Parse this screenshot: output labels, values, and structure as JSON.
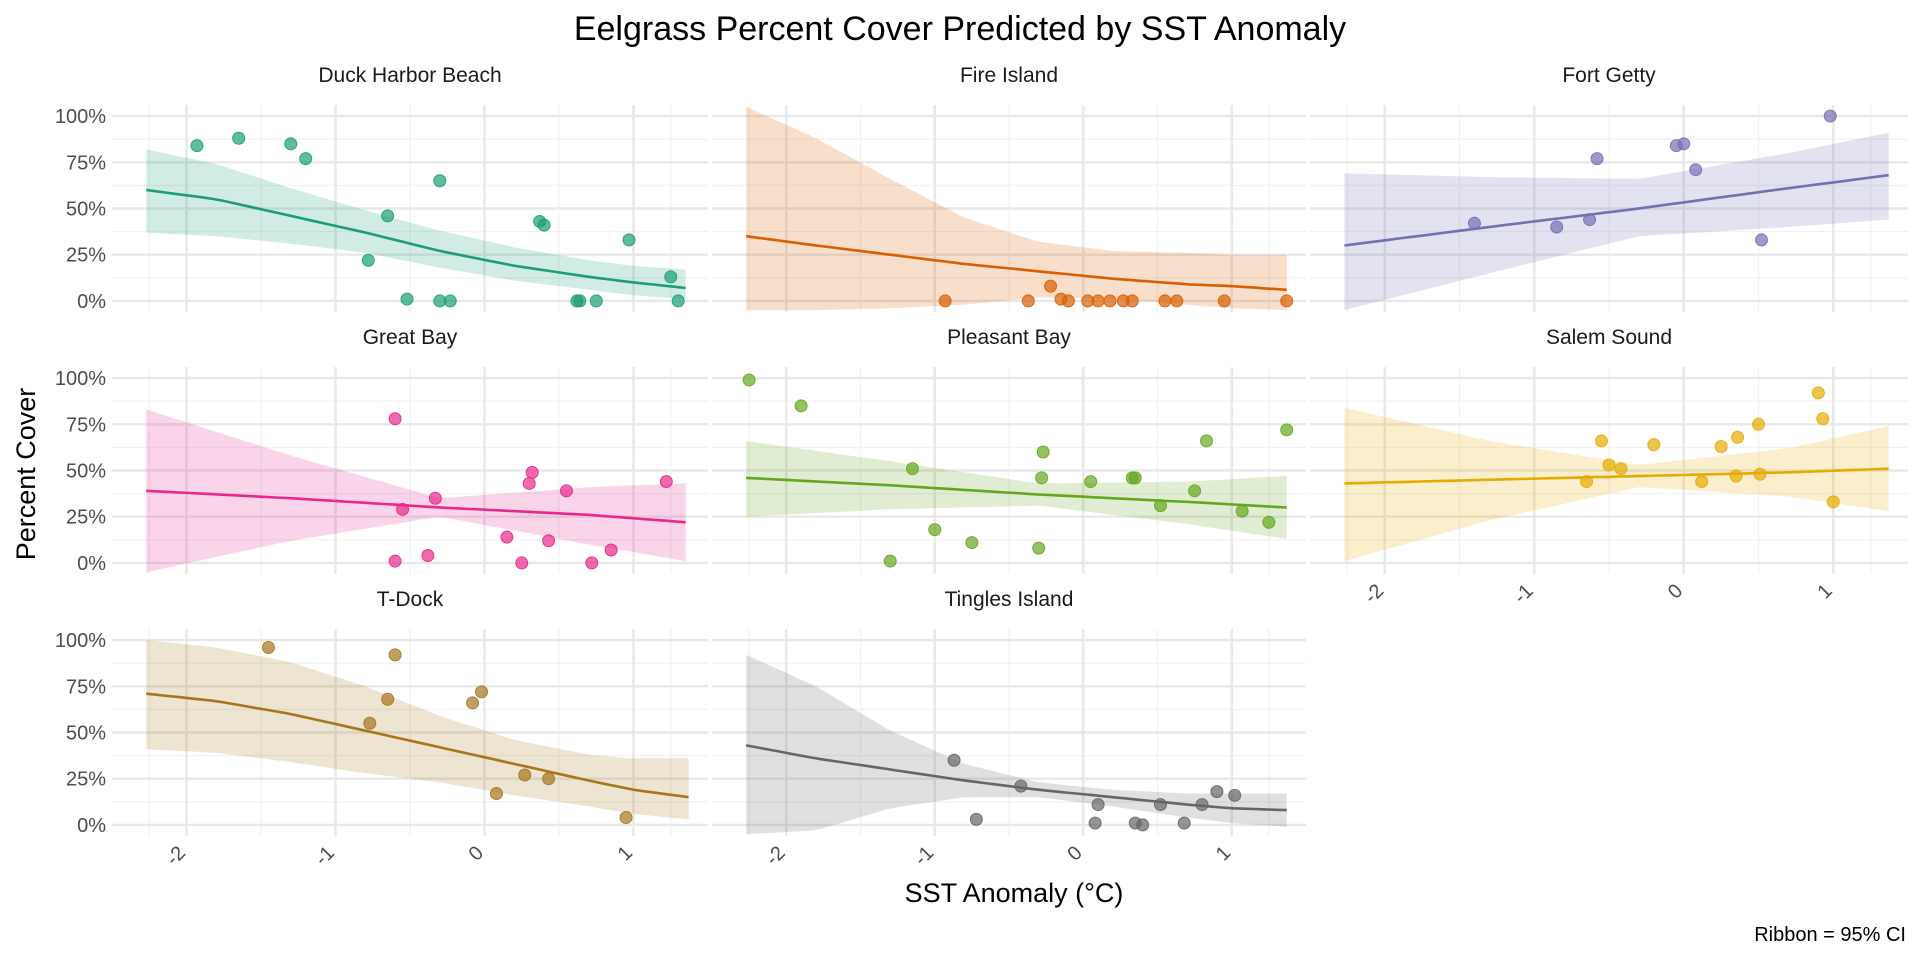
{
  "chart_data": {
    "type": "scatter",
    "title": "Eelgrass Percent Cover Predicted by SST Anomaly",
    "xlabel": "SST Anomaly (°C)",
    "ylabel": "Percent Cover",
    "caption": "Ribbon = 95% CI",
    "xlim": [
      -2.5,
      1.5
    ],
    "ylim": [
      -0.06,
      1.06
    ],
    "x_ticks": [
      -2,
      -1,
      0,
      1
    ],
    "x_tick_labels": [
      "-2",
      "-1",
      "0",
      "1"
    ],
    "y_ticks": [
      0,
      0.25,
      0.5,
      0.75,
      1
    ],
    "y_tick_labels": [
      "0%",
      "25%",
      "50%",
      "75%",
      "100%"
    ],
    "grid": true,
    "facets": [
      {
        "name": "Duck Harbor Beach",
        "color": "#1b9e77",
        "x_range": [
          -2.27,
          1.35
        ],
        "fit": {
          "x": [
            -2.27,
            -1.8,
            -1.3,
            -0.8,
            -0.3,
            0.2,
            0.7,
            1.0,
            1.35
          ],
          "y": [
            0.6,
            0.55,
            0.46,
            0.37,
            0.27,
            0.19,
            0.13,
            0.1,
            0.07
          ]
        },
        "ci_upper": [
          0.82,
          0.74,
          0.61,
          0.49,
          0.38,
          0.29,
          0.22,
          0.19,
          0.17
        ],
        "ci_lower": [
          0.37,
          0.35,
          0.31,
          0.26,
          0.18,
          0.11,
          0.06,
          0.03,
          0.01
        ],
        "points": [
          {
            "x": -1.93,
            "y": 0.84
          },
          {
            "x": -1.65,
            "y": 0.88
          },
          {
            "x": -1.3,
            "y": 0.85
          },
          {
            "x": -1.2,
            "y": 0.77
          },
          {
            "x": -0.78,
            "y": 0.22
          },
          {
            "x": -0.65,
            "y": 0.46
          },
          {
            "x": -0.52,
            "y": 0.01
          },
          {
            "x": -0.3,
            "y": 0.65
          },
          {
            "x": -0.3,
            "y": 0.0
          },
          {
            "x": -0.23,
            "y": 0.0
          },
          {
            "x": 0.37,
            "y": 0.43
          },
          {
            "x": 0.4,
            "y": 0.41
          },
          {
            "x": 0.62,
            "y": 0.0
          },
          {
            "x": 0.64,
            "y": 0.0
          },
          {
            "x": 0.75,
            "y": 0.0
          },
          {
            "x": 0.97,
            "y": 0.33
          },
          {
            "x": 1.25,
            "y": 0.13
          },
          {
            "x": 1.3,
            "y": 0.0
          }
        ]
      },
      {
        "name": "Fire Island",
        "color": "#d95f02",
        "x_range": [
          -2.27,
          1.37
        ],
        "fit": {
          "x": [
            -2.27,
            -1.8,
            -1.3,
            -0.8,
            -0.3,
            0.2,
            0.7,
            1.0,
            1.37
          ],
          "y": [
            0.35,
            0.3,
            0.25,
            0.2,
            0.16,
            0.12,
            0.09,
            0.08,
            0.06
          ]
        },
        "ci_upper": [
          1.05,
          0.88,
          0.66,
          0.45,
          0.32,
          0.27,
          0.26,
          0.25,
          0.25
        ],
        "ci_lower": [
          -0.05,
          -0.05,
          -0.04,
          -0.02,
          0.02,
          0.01,
          -0.02,
          -0.04,
          -0.05
        ],
        "points": [
          {
            "x": -0.93,
            "y": 0.0
          },
          {
            "x": -0.37,
            "y": 0.0
          },
          {
            "x": -0.22,
            "y": 0.08
          },
          {
            "x": -0.15,
            "y": 0.01
          },
          {
            "x": -0.1,
            "y": 0.0
          },
          {
            "x": 0.03,
            "y": 0.0
          },
          {
            "x": 0.1,
            "y": 0.0
          },
          {
            "x": 0.18,
            "y": 0.0
          },
          {
            "x": 0.27,
            "y": 0.0
          },
          {
            "x": 0.33,
            "y": 0.0
          },
          {
            "x": 0.55,
            "y": 0.0
          },
          {
            "x": 0.63,
            "y": 0.0
          },
          {
            "x": 0.95,
            "y": 0.0
          },
          {
            "x": 1.37,
            "y": 0.0
          }
        ]
      },
      {
        "name": "Fort Getty",
        "color": "#7570b3",
        "x_range": [
          -2.27,
          1.37
        ],
        "fit": {
          "x": [
            -2.27,
            -1.3,
            -0.3,
            0.7,
            1.37
          ],
          "y": [
            0.3,
            0.4,
            0.5,
            0.61,
            0.68
          ]
        },
        "ci_upper": [
          0.69,
          0.67,
          0.66,
          0.8,
          0.91
        ],
        "ci_lower": [
          -0.05,
          0.15,
          0.35,
          0.4,
          0.44
        ],
        "points": [
          {
            "x": -1.4,
            "y": 0.42
          },
          {
            "x": -0.85,
            "y": 0.4
          },
          {
            "x": -0.63,
            "y": 0.44
          },
          {
            "x": -0.58,
            "y": 0.77
          },
          {
            "x": -0.05,
            "y": 0.84
          },
          {
            "x": 0.0,
            "y": 0.85
          },
          {
            "x": 0.08,
            "y": 0.71
          },
          {
            "x": 0.52,
            "y": 0.33
          },
          {
            "x": 0.98,
            "y": 1.0
          }
        ]
      },
      {
        "name": "Great Bay",
        "color": "#e7298a",
        "x_range": [
          -2.27,
          1.35
        ],
        "fit": {
          "x": [
            -2.27,
            -1.3,
            -0.3,
            0.7,
            1.35
          ],
          "y": [
            0.39,
            0.35,
            0.3,
            0.26,
            0.22
          ]
        },
        "ci_upper": [
          0.83,
          0.58,
          0.35,
          0.41,
          0.43
        ],
        "ci_lower": [
          -0.05,
          0.12,
          0.25,
          0.1,
          0.01
        ],
        "points": [
          {
            "x": -0.6,
            "y": 0.78
          },
          {
            "x": -0.6,
            "y": 0.01
          },
          {
            "x": -0.55,
            "y": 0.29
          },
          {
            "x": -0.38,
            "y": 0.04
          },
          {
            "x": -0.33,
            "y": 0.35
          },
          {
            "x": 0.15,
            "y": 0.14
          },
          {
            "x": 0.25,
            "y": 0.0
          },
          {
            "x": 0.3,
            "y": 0.43
          },
          {
            "x": 0.32,
            "y": 0.49
          },
          {
            "x": 0.43,
            "y": 0.12
          },
          {
            "x": 0.55,
            "y": 0.39
          },
          {
            "x": 0.72,
            "y": 0.0
          },
          {
            "x": 0.85,
            "y": 0.07
          },
          {
            "x": 1.22,
            "y": 0.44
          }
        ]
      },
      {
        "name": "Pleasant Bay",
        "color": "#66a61e",
        "x_range": [
          -2.27,
          1.37
        ],
        "fit": {
          "x": [
            -2.27,
            -1.3,
            -0.3,
            0.7,
            1.37
          ],
          "y": [
            0.46,
            0.42,
            0.37,
            0.33,
            0.3
          ]
        },
        "ci_upper": [
          0.66,
          0.55,
          0.43,
          0.44,
          0.47
        ],
        "ci_lower": [
          0.25,
          0.29,
          0.31,
          0.21,
          0.13
        ],
        "points": [
          {
            "x": -2.25,
            "y": 0.99
          },
          {
            "x": -1.9,
            "y": 0.85
          },
          {
            "x": -1.3,
            "y": 0.01
          },
          {
            "x": -1.15,
            "y": 0.51
          },
          {
            "x": -1.0,
            "y": 0.18
          },
          {
            "x": -0.75,
            "y": 0.11
          },
          {
            "x": -0.3,
            "y": 0.08
          },
          {
            "x": -0.28,
            "y": 0.46
          },
          {
            "x": -0.27,
            "y": 0.6
          },
          {
            "x": 0.05,
            "y": 0.44
          },
          {
            "x": 0.33,
            "y": 0.46
          },
          {
            "x": 0.35,
            "y": 0.46
          },
          {
            "x": 0.52,
            "y": 0.31
          },
          {
            "x": 0.75,
            "y": 0.39
          },
          {
            "x": 0.83,
            "y": 0.66
          },
          {
            "x": 1.07,
            "y": 0.28
          },
          {
            "x": 1.25,
            "y": 0.22
          },
          {
            "x": 1.37,
            "y": 0.72
          }
        ]
      },
      {
        "name": "Salem Sound",
        "color": "#e6ab02",
        "x_range": [
          -2.27,
          1.37
        ],
        "fit": {
          "x": [
            -2.27,
            -1.3,
            -0.3,
            0.7,
            1.37
          ],
          "y": [
            0.43,
            0.45,
            0.47,
            0.49,
            0.51
          ]
        },
        "ci_upper": [
          0.84,
          0.66,
          0.53,
          0.62,
          0.74
        ],
        "ci_lower": [
          0.01,
          0.23,
          0.41,
          0.36,
          0.28
        ],
        "points": [
          {
            "x": -0.65,
            "y": 0.44
          },
          {
            "x": -0.55,
            "y": 0.66
          },
          {
            "x": -0.5,
            "y": 0.53
          },
          {
            "x": -0.42,
            "y": 0.51
          },
          {
            "x": -0.2,
            "y": 0.64
          },
          {
            "x": 0.12,
            "y": 0.44
          },
          {
            "x": 0.25,
            "y": 0.63
          },
          {
            "x": 0.35,
            "y": 0.47
          },
          {
            "x": 0.36,
            "y": 0.68
          },
          {
            "x": 0.5,
            "y": 0.75
          },
          {
            "x": 0.51,
            "y": 0.48
          },
          {
            "x": 0.9,
            "y": 0.92
          },
          {
            "x": 0.93,
            "y": 0.78
          },
          {
            "x": 1.0,
            "y": 0.33
          }
        ]
      },
      {
        "name": "T-Dock",
        "color": "#a6761d",
        "x_range": [
          -2.27,
          1.37
        ],
        "fit": {
          "x": [
            -2.27,
            -1.8,
            -1.3,
            -0.8,
            -0.3,
            0.2,
            0.7,
            1.0,
            1.37
          ],
          "y": [
            0.71,
            0.67,
            0.6,
            0.51,
            0.42,
            0.33,
            0.24,
            0.19,
            0.15
          ]
        },
        "ci_upper": [
          1.0,
          0.96,
          0.88,
          0.75,
          0.59,
          0.46,
          0.38,
          0.36,
          0.36
        ],
        "ci_lower": [
          0.41,
          0.39,
          0.34,
          0.28,
          0.23,
          0.16,
          0.1,
          0.06,
          0.03
        ],
        "points": [
          {
            "x": -1.45,
            "y": 0.96
          },
          {
            "x": -0.77,
            "y": 0.55
          },
          {
            "x": -0.65,
            "y": 0.68
          },
          {
            "x": -0.6,
            "y": 0.92
          },
          {
            "x": -0.08,
            "y": 0.66
          },
          {
            "x": -0.02,
            "y": 0.72
          },
          {
            "x": 0.08,
            "y": 0.17
          },
          {
            "x": 0.27,
            "y": 0.27
          },
          {
            "x": 0.43,
            "y": 0.25
          },
          {
            "x": 0.95,
            "y": 0.04
          }
        ]
      },
      {
        "name": "Tingles Island",
        "color": "#666666",
        "x_range": [
          -2.27,
          1.37
        ],
        "fit": {
          "x": [
            -2.27,
            -1.8,
            -1.3,
            -0.8,
            -0.3,
            0.2,
            0.7,
            1.0,
            1.37
          ],
          "y": [
            0.43,
            0.36,
            0.3,
            0.24,
            0.19,
            0.15,
            0.11,
            0.09,
            0.08
          ]
        },
        "ci_upper": [
          0.92,
          0.75,
          0.51,
          0.33,
          0.23,
          0.19,
          0.17,
          0.17,
          0.17
        ],
        "ci_lower": [
          -0.05,
          -0.03,
          0.09,
          0.15,
          0.15,
          0.1,
          0.04,
          0.01,
          -0.01
        ],
        "points": [
          {
            "x": -0.87,
            "y": 0.35
          },
          {
            "x": -0.72,
            "y": 0.03
          },
          {
            "x": -0.42,
            "y": 0.21
          },
          {
            "x": 0.08,
            "y": 0.01
          },
          {
            "x": 0.1,
            "y": 0.11
          },
          {
            "x": 0.35,
            "y": 0.01
          },
          {
            "x": 0.4,
            "y": 0.0
          },
          {
            "x": 0.52,
            "y": 0.11
          },
          {
            "x": 0.68,
            "y": 0.01
          },
          {
            "x": 0.8,
            "y": 0.11
          },
          {
            "x": 0.9,
            "y": 0.18
          },
          {
            "x": 1.02,
            "y": 0.16
          }
        ]
      }
    ]
  }
}
